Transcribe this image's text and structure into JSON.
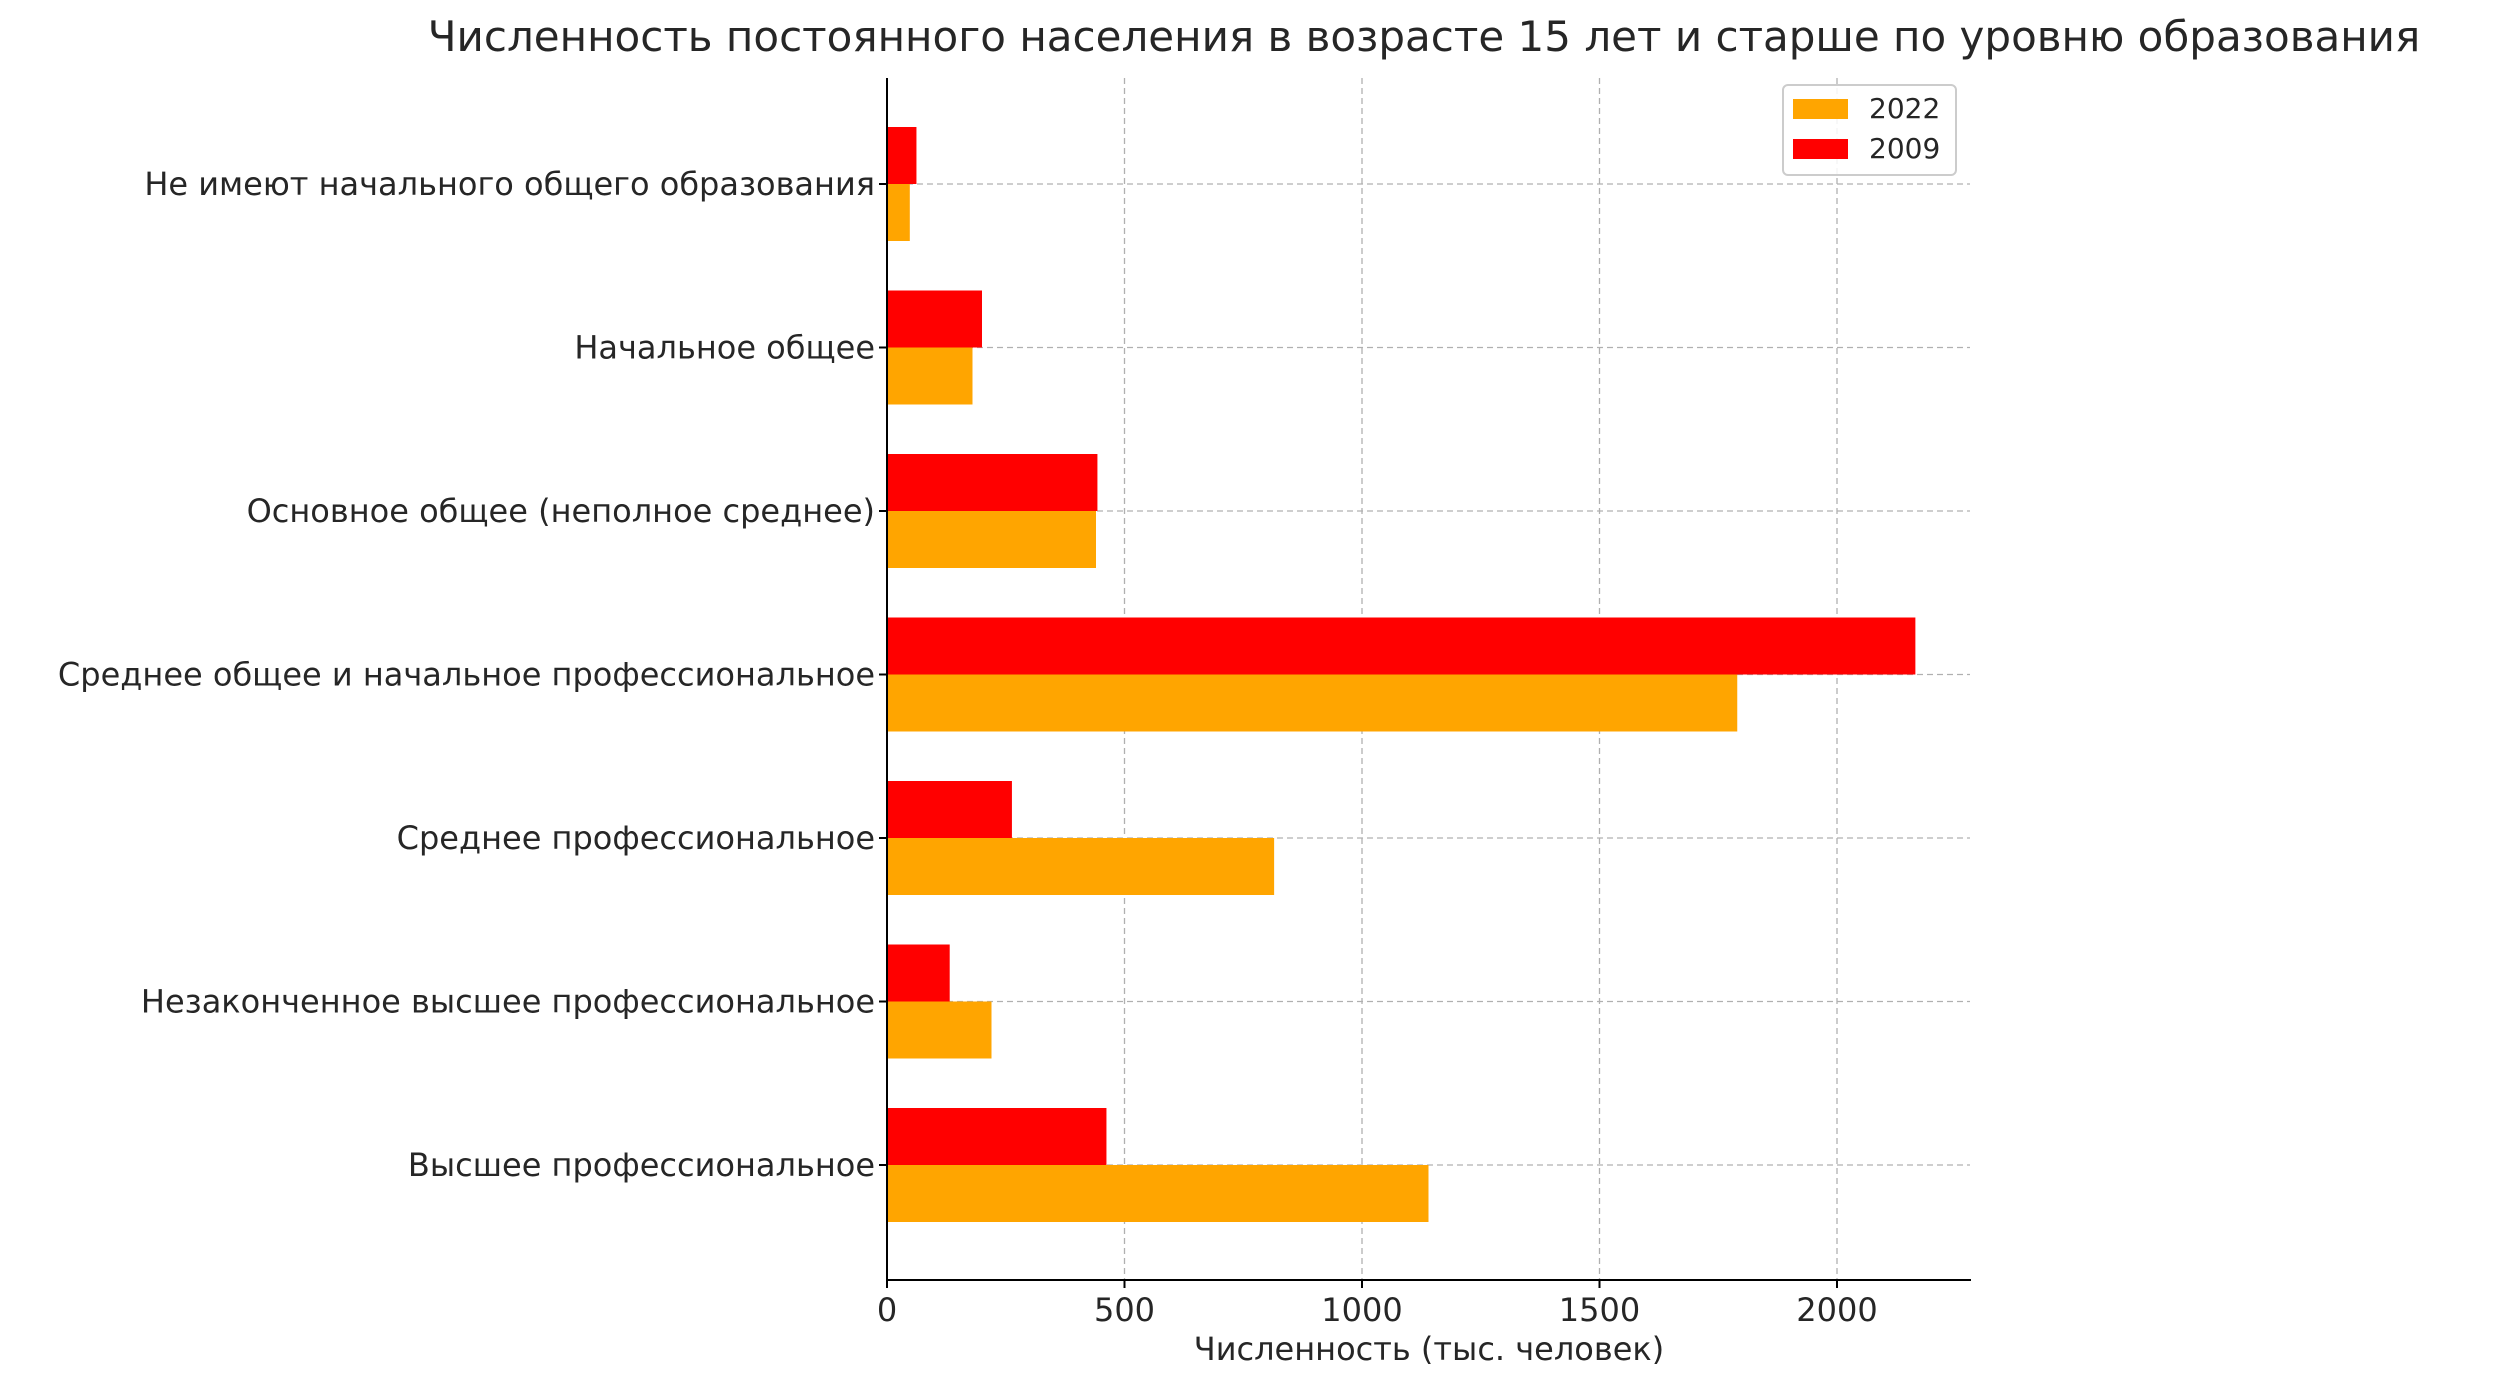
{
  "chart_data": {
    "type": "bar",
    "orientation": "horizontal",
    "title": "Численность постоянного населения в возрасте 15 лет и старше по уровню образования",
    "xlabel": "Численность (тыс. человек)",
    "ylabel": "",
    "xlim": [
      0,
      2280
    ],
    "xticks": [
      0,
      500,
      1000,
      1500,
      2000
    ],
    "grid": true,
    "legend_position": "top-right",
    "categories": [
      "Не имеют начального общего образования",
      "Начальное общее",
      "Основное общее (неполное среднее)",
      "Среднее общее и начальное профессиональное",
      "Среднее профессиональное",
      "Незаконченное высшее профессиональное",
      "Высшее профессиональное"
    ],
    "series": [
      {
        "name": "2022",
        "color": "#FFA500",
        "values": [
          48,
          180,
          440,
          1790,
          815,
          220,
          1140
        ]
      },
      {
        "name": "2009",
        "color": "#FF0000",
        "values": [
          62,
          200,
          443,
          2165,
          263,
          132,
          462
        ]
      }
    ]
  }
}
